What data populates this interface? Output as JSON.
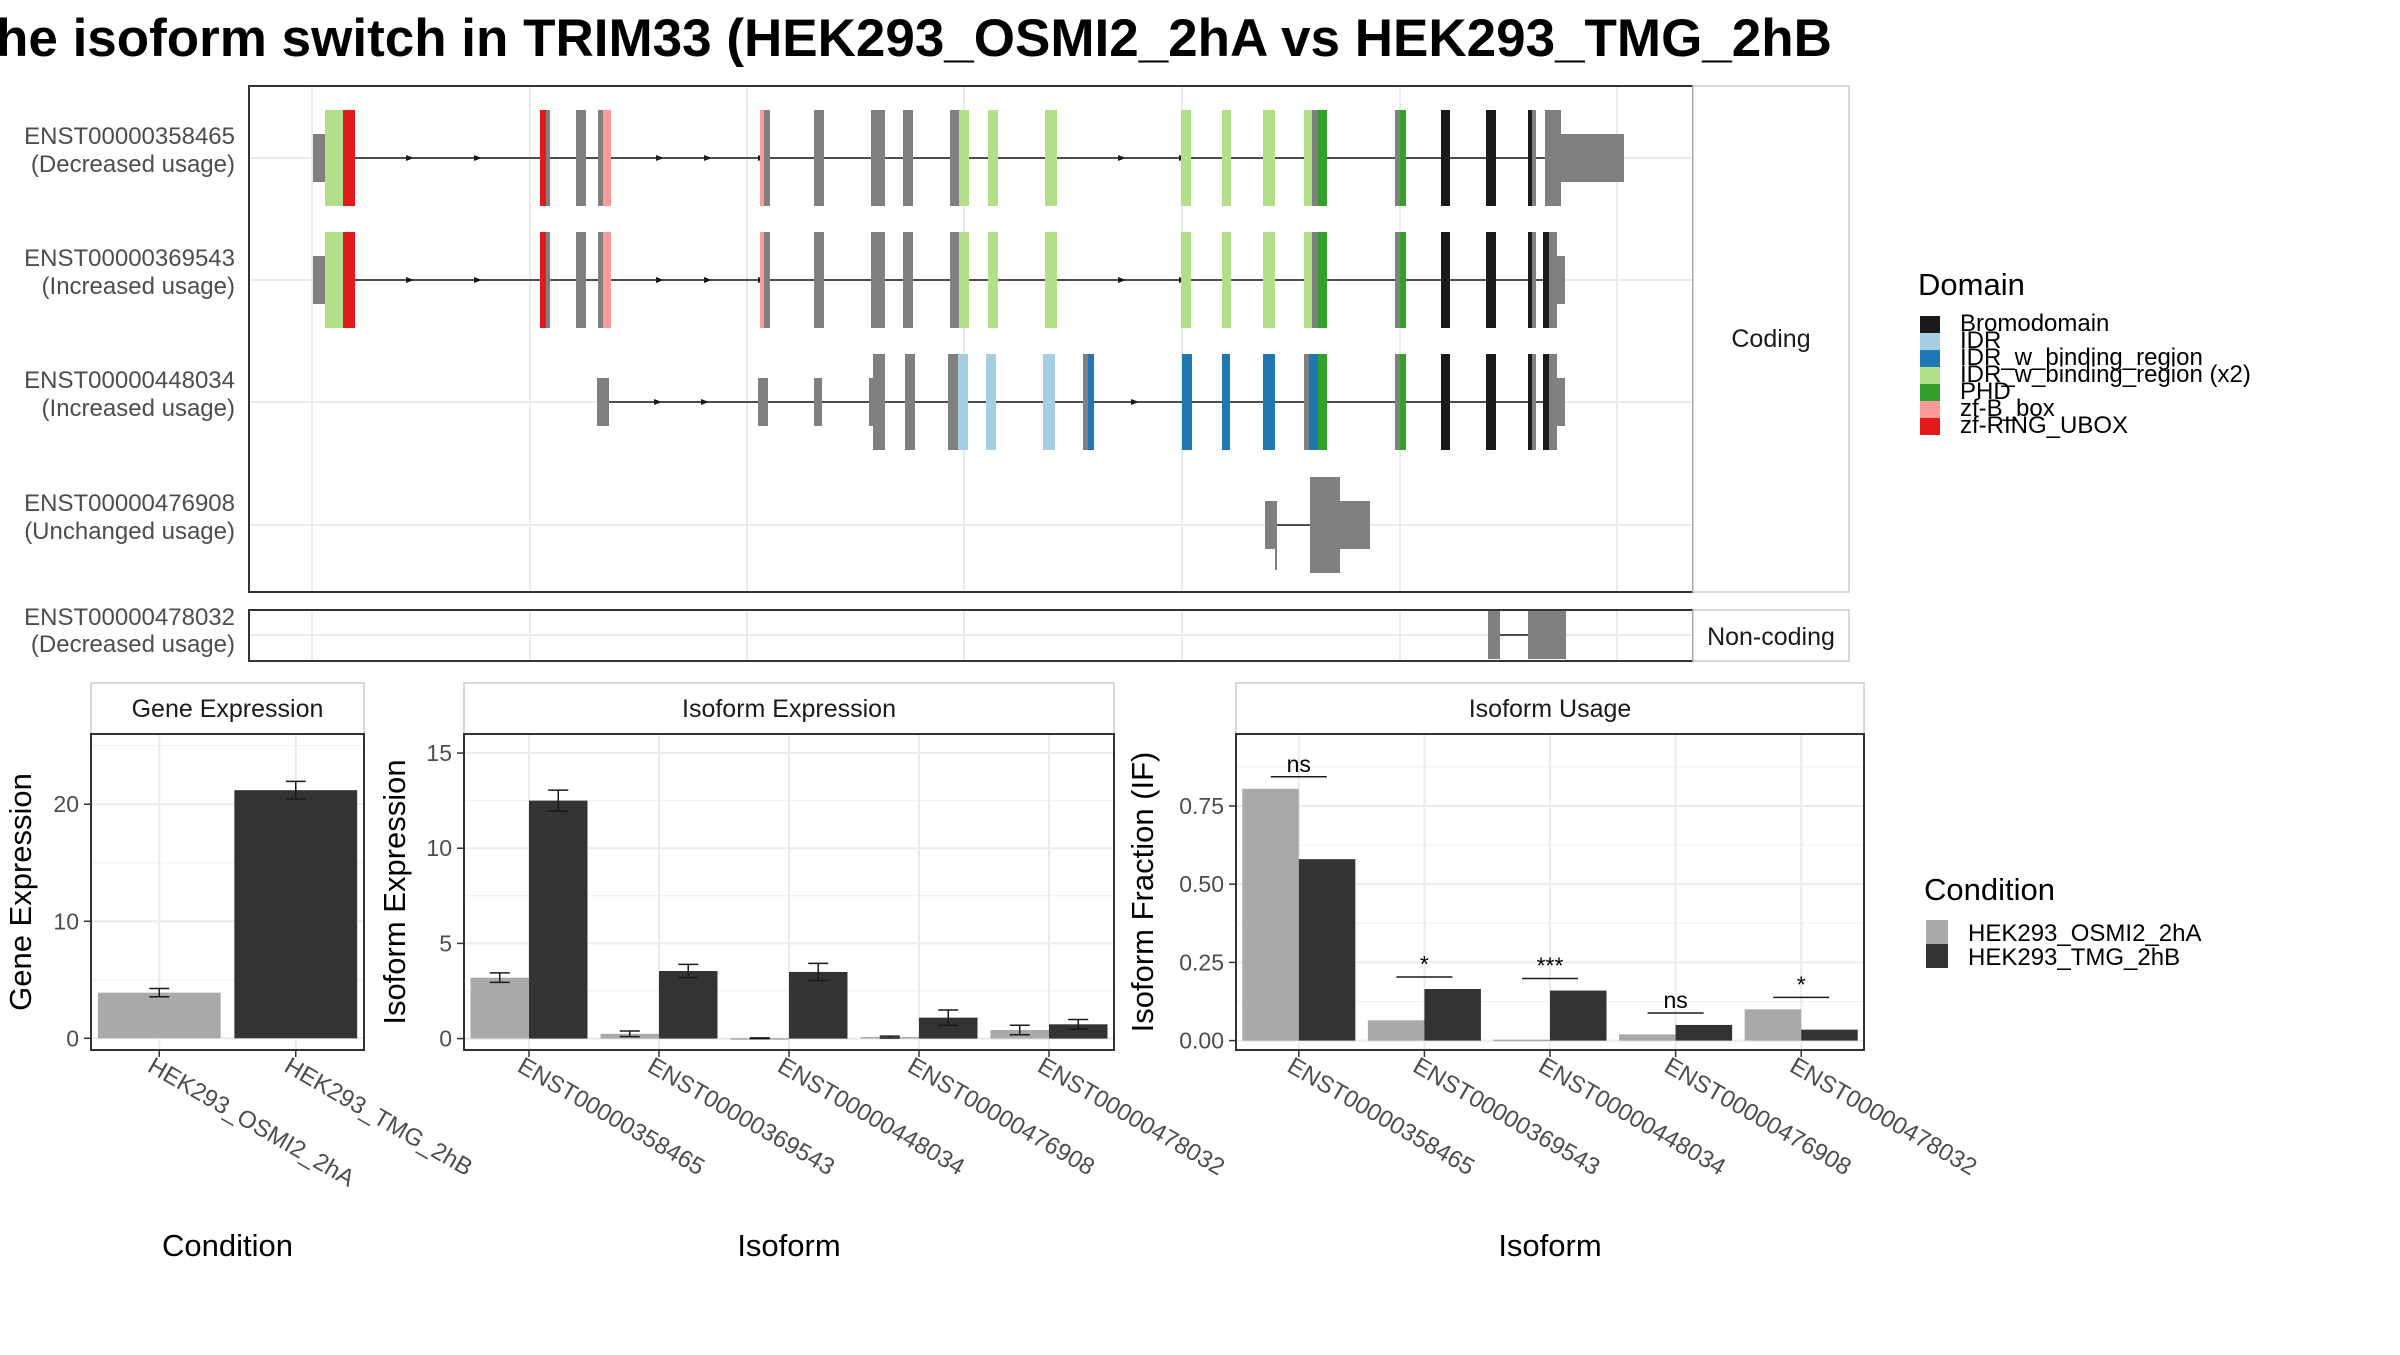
{
  "title": "he isoform switch in TRIM33 (HEK293_OSMI2_2hA vs HEK293_TMG_2hB",
  "colors": {
    "Bromodomain": "#1a1a1a",
    "IDR": "#a6cee3",
    "IDR_w_binding_region": "#1f78b4",
    "IDR_w_binding_region (x2)": "#b2df8a",
    "PHD": "#33a02c",
    "zf-B_box": "#fb9a99",
    "zf-RING_UBOX": "#e31a1c",
    "exon": "#808080",
    "cond1": "#a9a9a9",
    "cond2": "#333333"
  },
  "structure": {
    "facet_coding": "Coding",
    "facet_noncoding": "Non-coding",
    "transcripts": [
      {
        "id": "ENST00000358465",
        "usage": "(Decreased usage)",
        "group": "coding"
      },
      {
        "id": "ENST00000369543",
        "usage": "(Increased usage)",
        "group": "coding"
      },
      {
        "id": "ENST00000448034",
        "usage": "(Increased usage)",
        "group": "coding"
      },
      {
        "id": "ENST00000476908",
        "usage": "(Unchanged usage)",
        "group": "coding"
      },
      {
        "id": "ENST00000478032",
        "usage": "(Decreased usage)",
        "group": "noncoding"
      }
    ]
  },
  "legend_domain": {
    "title": "Domain",
    "items": [
      "Bromodomain",
      "IDR",
      "IDR_w_binding_region",
      "IDR_w_binding_region (x2)",
      "PHD",
      "zf-B_box",
      "zf-RING_UBOX"
    ]
  },
  "legend_condition": {
    "title": "Condition",
    "items": [
      "HEK293_OSMI2_2hA",
      "HEK293_TMG_2hB"
    ]
  },
  "chart_data": [
    {
      "type": "bar",
      "title": "Gene Expression",
      "xlabel": "Condition",
      "ylabel": "Gene Expression",
      "categories": [
        "HEK293_OSMI2_2hA",
        "HEK293_TMG_2hB"
      ],
      "values": [
        3.9,
        21.2
      ],
      "errors": [
        0.35,
        0.75
      ],
      "ylim": [
        -1,
        26
      ],
      "yticks": [
        0,
        10,
        20
      ],
      "grid": true
    },
    {
      "type": "bar",
      "title": "Isoform Expression",
      "xlabel": "Isoform",
      "ylabel": "Isoform Expression",
      "categories": [
        "ENST00000358465",
        "ENST00000369543",
        "ENST00000448034",
        "ENST00000476908",
        "ENST00000478032"
      ],
      "series": [
        {
          "name": "HEK293_OSMI2_2hA",
          "values": [
            3.2,
            0.25,
            0.02,
            0.08,
            0.45
          ],
          "errors": [
            0.25,
            0.15,
            0.02,
            0.05,
            0.25
          ]
        },
        {
          "name": "HEK293_TMG_2hB",
          "values": [
            12.5,
            3.55,
            3.5,
            1.1,
            0.75
          ],
          "errors": [
            0.55,
            0.35,
            0.45,
            0.4,
            0.25
          ]
        }
      ],
      "ylim": [
        -0.6,
        16
      ],
      "yticks": [
        0,
        5,
        10,
        15
      ],
      "grid": true
    },
    {
      "type": "bar",
      "title": "Isoform Usage",
      "xlabel": "Isoform",
      "ylabel": "Isoform Fraction (IF)",
      "categories": [
        "ENST00000358465",
        "ENST00000369543",
        "ENST00000448034",
        "ENST00000476908",
        "ENST00000478032"
      ],
      "series": [
        {
          "name": "HEK293_OSMI2_2hA",
          "values": [
            0.805,
            0.065,
            0.003,
            0.02,
            0.1
          ]
        },
        {
          "name": "HEK293_TMG_2hB",
          "values": [
            0.58,
            0.165,
            0.16,
            0.05,
            0.035
          ]
        }
      ],
      "significance": [
        "ns",
        "*",
        "***",
        "ns",
        "*"
      ],
      "ylim": [
        -0.03,
        0.98
      ],
      "yticks": [
        0.0,
        0.25,
        0.5,
        0.75
      ],
      "ytick_labels": [
        "0.00",
        "0.25",
        "0.50",
        "0.75"
      ],
      "grid": true
    }
  ]
}
